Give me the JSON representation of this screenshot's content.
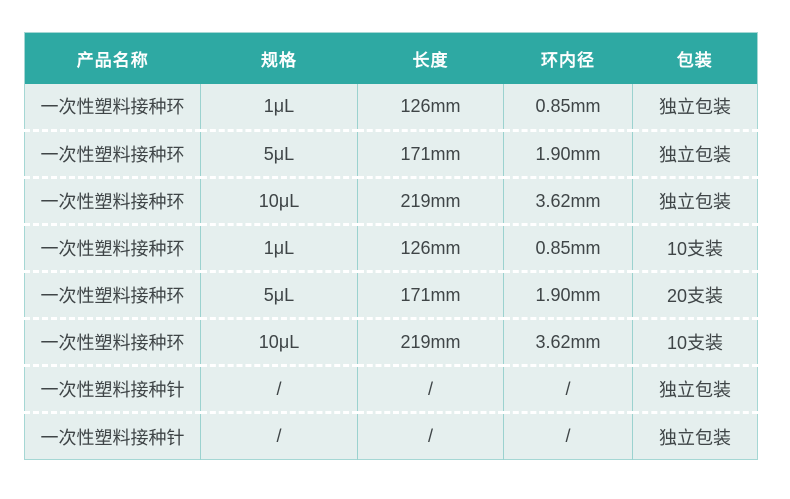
{
  "colors": {
    "page_bg": "#ffffff",
    "header_bg": "#2ea9a3",
    "header_text": "#fdfefe",
    "body_bg": "#e5efee",
    "body_text": "#3f4547",
    "column_divider": "#9bd2cf",
    "outer_border": "#a5d7d4",
    "row_divider": "#ffffff"
  },
  "table": {
    "headers": [
      "产品名称",
      "规格",
      "长度",
      "环内径",
      "包装"
    ],
    "rows": [
      [
        "一次性塑料接种环",
        "1μL",
        "126mm",
        "0.85mm",
        "独立包装"
      ],
      [
        "一次性塑料接种环",
        "5μL",
        "171mm",
        "1.90mm",
        "独立包装"
      ],
      [
        "一次性塑料接种环",
        "10μL",
        "219mm",
        "3.62mm",
        "独立包装"
      ],
      [
        "一次性塑料接种环",
        "1μL",
        "126mm",
        "0.85mm",
        "10支装"
      ],
      [
        "一次性塑料接种环",
        "5μL",
        "171mm",
        "1.90mm",
        "20支装"
      ],
      [
        "一次性塑料接种环",
        "10μL",
        "219mm",
        "3.62mm",
        "10支装"
      ],
      [
        "一次性塑料接种针",
        "/",
        "/",
        "/",
        "独立包装"
      ],
      [
        "一次性塑料接种针",
        "/",
        "/",
        "/",
        "独立包装"
      ]
    ]
  }
}
